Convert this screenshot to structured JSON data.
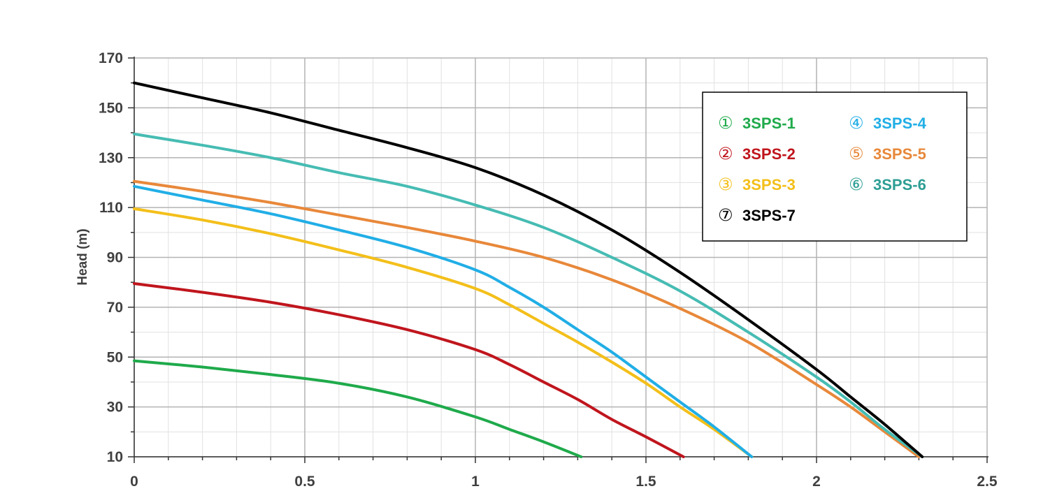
{
  "chart_data": {
    "type": "line",
    "title": "",
    "xlabel": "",
    "ylabel": "Head (m)",
    "xlim": [
      0,
      2.5
    ],
    "ylim": [
      10,
      170
    ],
    "x_ticks": [
      "0",
      "0.5",
      "1",
      "1.5",
      "2",
      "2.5"
    ],
    "y_ticks": [
      "10",
      "30",
      "50",
      "70",
      "90",
      "110",
      "130",
      "150",
      "170"
    ],
    "grid": true,
    "legend_position": "top-right",
    "series": [
      {
        "name": "3SPS-1",
        "marker": "①",
        "color": "#1faa4b",
        "x": [
          0,
          0.2,
          0.4,
          0.6,
          0.8,
          1.0,
          1.1,
          1.2,
          1.31
        ],
        "y": [
          48.5,
          46,
          43,
          39.5,
          34,
          26,
          21,
          16,
          10
        ]
      },
      {
        "name": "3SPS-2",
        "marker": "②",
        "color": "#c0151d",
        "x": [
          0,
          0.2,
          0.4,
          0.6,
          0.8,
          1.0,
          1.1,
          1.2,
          1.3,
          1.4,
          1.5,
          1.61
        ],
        "y": [
          79.5,
          76,
          72,
          67,
          61,
          53,
          47,
          40,
          33,
          25,
          18,
          10
        ]
      },
      {
        "name": "3SPS-3",
        "marker": "③",
        "color": "#f3bf1a",
        "x": [
          0,
          0.2,
          0.4,
          0.6,
          0.8,
          1.0,
          1.1,
          1.2,
          1.3,
          1.4,
          1.5,
          1.6,
          1.7,
          1.81
        ],
        "y": [
          109.5,
          105,
          99.5,
          93,
          86,
          77.5,
          71,
          63.5,
          56,
          48,
          39.5,
          30,
          21,
          10
        ]
      },
      {
        "name": "3SPS-4",
        "marker": "④",
        "color": "#21aee6",
        "x": [
          0,
          0.2,
          0.4,
          0.6,
          0.8,
          1.0,
          1.1,
          1.2,
          1.3,
          1.4,
          1.5,
          1.6,
          1.7,
          1.81
        ],
        "y": [
          118.5,
          113,
          107.5,
          101,
          94,
          85,
          78,
          70,
          61,
          52,
          42,
          32,
          22,
          10
        ]
      },
      {
        "name": "3SPS-5",
        "marker": "⑤",
        "color": "#e8883a",
        "x": [
          0,
          0.2,
          0.4,
          0.6,
          0.8,
          1.0,
          1.2,
          1.4,
          1.6,
          1.8,
          2.0,
          2.1,
          2.2,
          2.3
        ],
        "y": [
          120.5,
          116.5,
          112,
          107,
          102,
          96.5,
          90,
          81,
          69.5,
          56,
          39,
          30,
          20,
          10
        ]
      },
      {
        "name": "3SPS-6",
        "marker": "⑥",
        "color": "#2e9e94",
        "x": [
          0,
          0.2,
          0.4,
          0.6,
          0.8,
          1.0,
          1.2,
          1.4,
          1.6,
          1.8,
          2.0,
          2.1,
          2.2,
          2.31
        ],
        "y": [
          139.5,
          135,
          130,
          124,
          118.5,
          111,
          102,
          90,
          76.5,
          60,
          42,
          32,
          21,
          10
        ]
      },
      {
        "name": "3SPS-7",
        "marker": "⑦",
        "color": "#000000",
        "x": [
          0,
          0.2,
          0.4,
          0.6,
          0.8,
          1.0,
          1.2,
          1.4,
          1.6,
          1.8,
          2.0,
          2.1,
          2.2,
          2.31
        ],
        "y": [
          160,
          154,
          148,
          141,
          134,
          126,
          115,
          101,
          84,
          65,
          45,
          34,
          23,
          10
        ]
      }
    ],
    "colors": {
      "grid_major": "#b3b3b3",
      "grid_minor": "#e1e1e1",
      "axis": "#333333",
      "legend_border": "#000000",
      "legend_text": {
        "3SPS-1": "#1faa4b",
        "3SPS-2": "#c0151d",
        "3SPS-3": "#f3bf1a",
        "3SPS-4": "#21aee6",
        "3SPS-5": "#e8883a",
        "3SPS-6": "#2e9e94",
        "3SPS-7": "#000000"
      },
      "curve_overrides": {
        "3SPS-6": "#46bcb3"
      }
    }
  }
}
